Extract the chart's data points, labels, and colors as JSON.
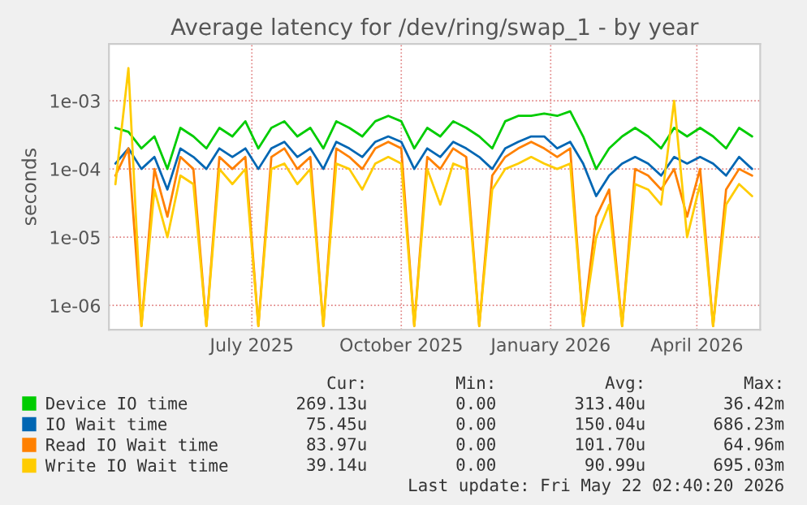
{
  "chart_data": {
    "type": "line",
    "title": "Average latency for /dev/ring/swap_1 - by year",
    "ylabel": "seconds",
    "log": "y",
    "grid": true,
    "legend": "bottom",
    "line_style": "solid",
    "marker": "none",
    "xlim": [
      "2025-04-04",
      "2026-05-10"
    ],
    "xticks": [
      {
        "value": "2025-07-01",
        "label": "July 2025"
      },
      {
        "value": "2025-10-01",
        "label": "October 2025"
      },
      {
        "value": "2026-01-01",
        "label": "January 2026"
      },
      {
        "value": "2026-04-01",
        "label": "April 2026"
      }
    ],
    "ylim": [
      4.4e-07,
      0.0068
    ],
    "yticks": [
      {
        "value": 1e-06,
        "label": "1e-06"
      },
      {
        "value": 1e-05,
        "label": "1e-05"
      },
      {
        "value": 0.0001,
        "label": "1e-04"
      },
      {
        "value": 0.001,
        "label": "1e-03"
      }
    ],
    "x": [
      "2025-04-08",
      "2025-04-16",
      "2025-04-24",
      "2025-05-02",
      "2025-05-10",
      "2025-05-18",
      "2025-05-26",
      "2025-06-03",
      "2025-06-11",
      "2025-06-19",
      "2025-06-27",
      "2025-07-05",
      "2025-07-13",
      "2025-07-21",
      "2025-07-29",
      "2025-08-06",
      "2025-08-14",
      "2025-08-22",
      "2025-08-30",
      "2025-09-07",
      "2025-09-15",
      "2025-09-23",
      "2025-10-01",
      "2025-10-09",
      "2025-10-17",
      "2025-10-25",
      "2025-11-02",
      "2025-11-10",
      "2025-11-18",
      "2025-11-26",
      "2025-12-04",
      "2025-12-12",
      "2025-12-20",
      "2025-12-28",
      "2026-01-05",
      "2026-01-13",
      "2026-01-21",
      "2026-01-29",
      "2026-02-06",
      "2026-02-14",
      "2026-02-22",
      "2026-03-02",
      "2026-03-10",
      "2026-03-18",
      "2026-03-26",
      "2026-04-03",
      "2026-04-11",
      "2026-04-19",
      "2026-04-27",
      "2026-05-05"
    ],
    "series": [
      {
        "name": "Device IO time",
        "color": "#00cc00",
        "values": [
          0.0004,
          0.00035,
          0.0002,
          0.0003,
          0.0001,
          0.0004,
          0.0003,
          0.0002,
          0.0004,
          0.0003,
          0.0005,
          0.0002,
          0.0004,
          0.0005,
          0.0003,
          0.0004,
          0.0002,
          0.0005,
          0.0004,
          0.0003,
          0.0005,
          0.0006,
          0.0005,
          0.0002,
          0.0004,
          0.0003,
          0.0005,
          0.0004,
          0.0003,
          0.0002,
          0.0005,
          0.0006,
          0.0006,
          0.00065,
          0.0006,
          0.0007,
          0.0003,
          0.0001,
          0.0002,
          0.0003,
          0.0004,
          0.0003,
          0.0002,
          0.0004,
          0.0003,
          0.0004,
          0.0003,
          0.0002,
          0.0004,
          0.0003
        ]
      },
      {
        "name": "IO Wait time",
        "color": "#0066b3",
        "values": [
          0.00012,
          0.0002,
          0.0001,
          0.00015,
          5e-05,
          0.0002,
          0.00015,
          0.0001,
          0.0002,
          0.00015,
          0.0002,
          0.0001,
          0.0002,
          0.00025,
          0.00015,
          0.0002,
          0.0001,
          0.00025,
          0.0002,
          0.00015,
          0.00025,
          0.0003,
          0.00025,
          0.0001,
          0.0002,
          0.00015,
          0.00025,
          0.0002,
          0.00015,
          0.0001,
          0.0002,
          0.00025,
          0.0003,
          0.0003,
          0.0002,
          0.00025,
          0.00012,
          4e-05,
          8e-05,
          0.00012,
          0.00015,
          0.00012,
          8e-05,
          0.00015,
          0.00012,
          0.00015,
          0.00012,
          8e-05,
          0.00015,
          0.0001
        ]
      },
      {
        "name": "Read IO Wait time",
        "color": "#ff8000",
        "values": [
          8e-05,
          0.0002,
          5e-07,
          0.0001,
          2e-05,
          0.00015,
          0.0001,
          5e-07,
          0.00015,
          0.0001,
          0.00015,
          5e-07,
          0.00015,
          0.0002,
          0.0001,
          0.00015,
          5e-07,
          0.0002,
          0.00015,
          0.0001,
          0.0002,
          0.00025,
          0.0002,
          5e-07,
          0.00015,
          0.0001,
          0.0002,
          0.00015,
          5e-07,
          8e-05,
          0.00015,
          0.0002,
          0.00025,
          0.0002,
          0.00015,
          0.0002,
          5e-07,
          2e-05,
          5e-05,
          5e-07,
          0.0001,
          8e-05,
          5e-05,
          0.0001,
          2e-05,
          0.0001,
          5e-07,
          5e-05,
          0.0001,
          8e-05
        ]
      },
      {
        "name": "Write IO Wait time",
        "color": "#ffcc00",
        "values": [
          6e-05,
          0.003,
          5e-07,
          5e-05,
          1e-05,
          8e-05,
          6e-05,
          5e-07,
          0.0001,
          6e-05,
          0.0001,
          5e-07,
          0.0001,
          0.00012,
          6e-05,
          0.0001,
          5e-07,
          0.00012,
          0.0001,
          5e-05,
          0.00012,
          0.00015,
          0.00012,
          5e-07,
          0.0001,
          3e-05,
          0.00012,
          0.0001,
          5e-07,
          5e-05,
          0.0001,
          0.00012,
          0.00015,
          0.00012,
          0.0001,
          0.00012,
          5e-07,
          1e-05,
          3e-05,
          5e-07,
          6e-05,
          5e-05,
          3e-05,
          0.001,
          1e-05,
          6e-05,
          5e-07,
          3e-05,
          6e-05,
          4e-05
        ]
      }
    ],
    "annotations": [
      "Cur:",
      "Min:",
      "Avg:",
      "Max:",
      "269.13u",
      "0.00",
      "313.40u",
      "36.42m",
      "75.45u",
      "0.00",
      "150.04u",
      "686.23m",
      "83.97u",
      "0.00",
      "101.70u",
      "64.96m",
      "39.14u",
      "0.00",
      "90.99u",
      "695.03m",
      "Last update: Fri May 22 02:40:20 2026"
    ]
  }
}
